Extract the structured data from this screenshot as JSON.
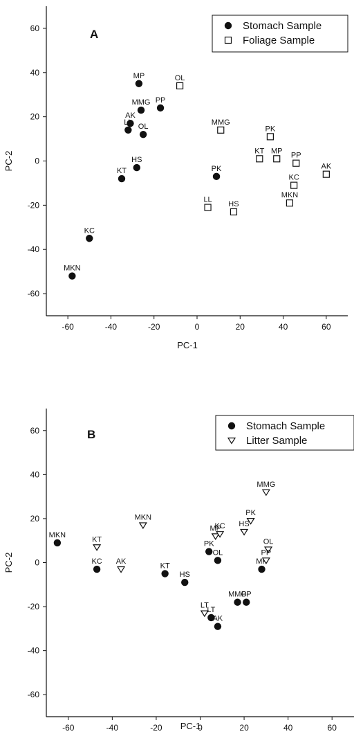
{
  "chart_data": [
    {
      "type": "scatter",
      "panel_label": "A",
      "xlabel": "PC-1",
      "ylabel": "PC-2",
      "xlim": [
        -70,
        70
      ],
      "ylim": [
        -70,
        70
      ],
      "xticks": [
        -60,
        -40,
        -20,
        0,
        20,
        40,
        60
      ],
      "yticks": [
        -60,
        -40,
        -20,
        0,
        20,
        40,
        60
      ],
      "legend_position": "top-right",
      "series": [
        {
          "name": "Stomach Sample",
          "marker": "filled-circle",
          "points": [
            {
              "label": "MP",
              "x": -27,
              "y": 35
            },
            {
              "label": "MMG",
              "x": -26,
              "y": 23
            },
            {
              "label": "PP",
              "x": -17,
              "y": 24
            },
            {
              "label": "AK",
              "x": -31,
              "y": 17
            },
            {
              "label": "LL",
              "x": -32,
              "y": 14
            },
            {
              "label": "OL",
              "x": -25,
              "y": 12
            },
            {
              "label": "HS",
              "x": -28,
              "y": -3
            },
            {
              "label": "KT",
              "x": -35,
              "y": -8
            },
            {
              "label": "PK",
              "x": 9,
              "y": -7
            },
            {
              "label": "KC",
              "x": -50,
              "y": -35
            },
            {
              "label": "MKN",
              "x": -58,
              "y": -52
            }
          ]
        },
        {
          "name": "Foliage Sample",
          "marker": "open-square",
          "points": [
            {
              "label": "OL",
              "x": -8,
              "y": 34
            },
            {
              "label": "MMG",
              "x": 11,
              "y": 14
            },
            {
              "label": "PK",
              "x": 34,
              "y": 11
            },
            {
              "label": "KT",
              "x": 29,
              "y": 1
            },
            {
              "label": "MP",
              "x": 37,
              "y": 1
            },
            {
              "label": "PP",
              "x": 46,
              "y": -1
            },
            {
              "label": "AK",
              "x": 60,
              "y": -6
            },
            {
              "label": "KC",
              "x": 45,
              "y": -11
            },
            {
              "label": "MKN",
              "x": 43,
              "y": -19
            },
            {
              "label": "LL",
              "x": 5,
              "y": -21
            },
            {
              "label": "HS",
              "x": 17,
              "y": -23
            }
          ]
        }
      ]
    },
    {
      "type": "scatter",
      "panel_label": "B",
      "xlabel": "PC-1",
      "ylabel": "PC-2",
      "xlim": [
        -70,
        70
      ],
      "ylim": [
        -70,
        70
      ],
      "xticks": [
        -60,
        -40,
        -20,
        0,
        20,
        40,
        60
      ],
      "yticks": [
        -60,
        -40,
        -20,
        0,
        20,
        40,
        60
      ],
      "legend_position": "top-right",
      "series": [
        {
          "name": "Stomach Sample",
          "marker": "filled-circle",
          "points": [
            {
              "label": "MKN",
              "x": -65,
              "y": 9
            },
            {
              "label": "KC",
              "x": -47,
              "y": -3
            },
            {
              "label": "KT",
              "x": -16,
              "y": -5
            },
            {
              "label": "HS",
              "x": -7,
              "y": -9
            },
            {
              "label": "PK",
              "x": 4,
              "y": 5
            },
            {
              "label": "OL",
              "x": 8,
              "y": 1
            },
            {
              "label": "MMG",
              "x": 17,
              "y": -18
            },
            {
              "label": "PP",
              "x": 21,
              "y": -18
            },
            {
              "label": "MP",
              "x": 28,
              "y": -3
            },
            {
              "label": "LT",
              "x": 5,
              "y": -25
            },
            {
              "label": "AK",
              "x": 8,
              "y": -29
            }
          ]
        },
        {
          "name": "Litter Sample",
          "marker": "open-triangle-down",
          "points": [
            {
              "label": "KT",
              "x": -47,
              "y": 7
            },
            {
              "label": "AK",
              "x": -36,
              "y": -3
            },
            {
              "label": "MKN",
              "x": -26,
              "y": 17
            },
            {
              "label": "MP",
              "x": 7,
              "y": 12
            },
            {
              "label": "KC",
              "x": 9,
              "y": 13
            },
            {
              "label": "HS",
              "x": 20,
              "y": 14
            },
            {
              "label": "PK",
              "x": 23,
              "y": 19
            },
            {
              "label": "MMG",
              "x": 30,
              "y": 32
            },
            {
              "label": "OL",
              "x": 31,
              "y": 6
            },
            {
              "label": "PP",
              "x": 30,
              "y": 1
            },
            {
              "label": "LT",
              "x": 2,
              "y": -23
            }
          ]
        }
      ]
    }
  ]
}
